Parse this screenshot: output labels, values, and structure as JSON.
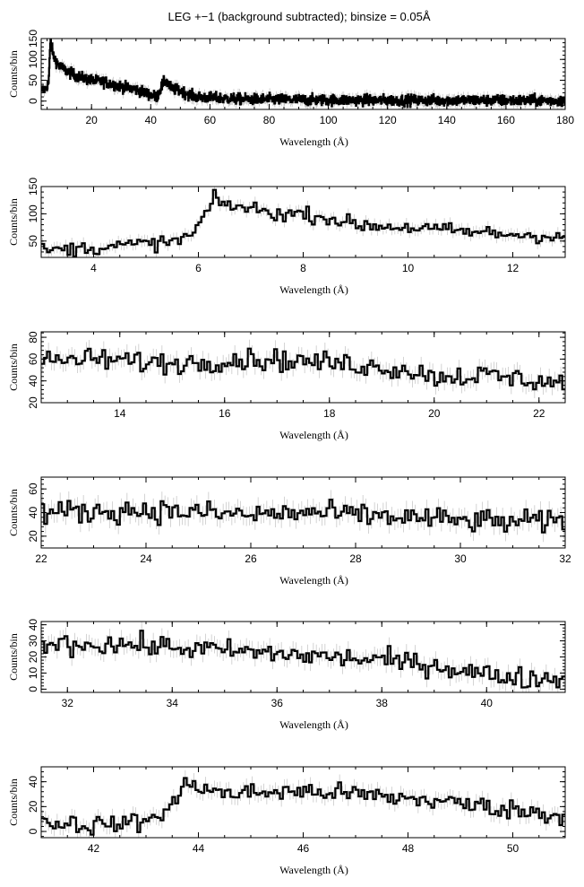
{
  "figure": {
    "title": "LEG +−1 (background subtracted); binsize = 0.05Å"
  },
  "chart_data": [
    {
      "type": "line",
      "style": "step-histogram-with-errorbars",
      "xlabel": "Wavelength (Å)",
      "ylabel": "Counts/bin",
      "xlim": [
        3,
        180
      ],
      "ylim": [
        -20,
        150
      ],
      "xticks": [
        20,
        40,
        60,
        80,
        100,
        120,
        140,
        160,
        180
      ],
      "yticks": [
        0,
        50,
        100,
        150
      ],
      "profile": [
        [
          3,
          25
        ],
        [
          4.5,
          30
        ],
        [
          5.5,
          45
        ],
        [
          6.2,
          150
        ],
        [
          7,
          110
        ],
        [
          9,
          85
        ],
        [
          12,
          70
        ],
        [
          15,
          60
        ],
        [
          20,
          50
        ],
        [
          25,
          45
        ],
        [
          30,
          35
        ],
        [
          35,
          28
        ],
        [
          40,
          15
        ],
        [
          42,
          10
        ],
        [
          44,
          40
        ],
        [
          45,
          50
        ],
        [
          47,
          30
        ],
        [
          50,
          25
        ],
        [
          55,
          10
        ],
        [
          60,
          8
        ],
        [
          70,
          5
        ],
        [
          90,
          3
        ],
        [
          120,
          2
        ],
        [
          150,
          2
        ],
        [
          180,
          1
        ]
      ],
      "noise": 12
    },
    {
      "type": "line",
      "style": "step-histogram-with-errorbars",
      "xlabel": "Wavelength (Å)",
      "ylabel": "Counts/bin",
      "xlim": [
        3,
        13
      ],
      "ylim": [
        20,
        150
      ],
      "xticks": [
        4,
        6,
        8,
        10,
        12
      ],
      "yticks": [
        50,
        100,
        150
      ],
      "profile": [
        [
          3,
          32
        ],
        [
          4,
          38
        ],
        [
          5,
          45
        ],
        [
          5.5,
          48
        ],
        [
          5.9,
          62
        ],
        [
          6.1,
          95
        ],
        [
          6.3,
          125
        ],
        [
          6.6,
          115
        ],
        [
          7,
          110
        ],
        [
          7.5,
          100
        ],
        [
          8,
          100
        ],
        [
          8.5,
          92
        ],
        [
          9,
          80
        ],
        [
          10,
          75
        ],
        [
          11,
          68
        ],
        [
          12,
          62
        ],
        [
          13,
          58
        ]
      ],
      "noise": 12
    },
    {
      "type": "line",
      "style": "step-histogram-with-errorbars",
      "xlabel": "Wavelength (Å)",
      "ylabel": "Counts/bin",
      "xlim": [
        12.5,
        22.5
      ],
      "ylim": [
        20,
        85
      ],
      "xticks": [
        14,
        16,
        18,
        20,
        22
      ],
      "yticks": [
        20,
        40,
        60,
        80
      ],
      "profile": [
        [
          12.5,
          58
        ],
        [
          13.5,
          60
        ],
        [
          15,
          56
        ],
        [
          16.5,
          60
        ],
        [
          17.5,
          58
        ],
        [
          18.5,
          55
        ],
        [
          19.5,
          50
        ],
        [
          20,
          44
        ],
        [
          21,
          45
        ],
        [
          22,
          40
        ],
        [
          22.5,
          38
        ]
      ],
      "noise": 9
    },
    {
      "type": "line",
      "style": "step-histogram-with-errorbars",
      "xlabel": "Wavelength (Å)",
      "ylabel": "Counts/bin",
      "xlim": [
        22,
        32
      ],
      "ylim": [
        10,
        70
      ],
      "xticks": [
        22,
        24,
        26,
        28,
        30,
        32
      ],
      "yticks": [
        20,
        40,
        60
      ],
      "profile": [
        [
          22,
          40
        ],
        [
          24,
          42
        ],
        [
          25,
          40
        ],
        [
          26,
          38
        ],
        [
          27,
          40
        ],
        [
          28,
          38
        ],
        [
          29,
          36
        ],
        [
          30,
          33
        ],
        [
          31,
          32
        ],
        [
          32,
          32
        ]
      ],
      "noise": 9
    },
    {
      "type": "line",
      "style": "step-histogram-with-errorbars",
      "xlabel": "Wavelength (Å)",
      "ylabel": "Counts/bin",
      "xlim": [
        31.5,
        41.5
      ],
      "ylim": [
        -2,
        42
      ],
      "xticks": [
        32,
        34,
        36,
        38,
        40
      ],
      "yticks": [
        0,
        10,
        20,
        30,
        40
      ],
      "profile": [
        [
          31.5,
          28
        ],
        [
          33,
          28
        ],
        [
          34,
          26
        ],
        [
          35,
          24
        ],
        [
          36,
          22
        ],
        [
          37,
          20
        ],
        [
          38,
          18
        ],
        [
          39,
          15
        ],
        [
          40,
          9
        ],
        [
          41,
          6
        ],
        [
          41.5,
          8
        ]
      ],
      "noise": 6
    },
    {
      "type": "line",
      "style": "step-histogram-with-errorbars",
      "xlabel": "Wavelength (Å)",
      "ylabel": "Counts/bin",
      "xlim": [
        41,
        51
      ],
      "ylim": [
        -5,
        52
      ],
      "xticks": [
        42,
        44,
        46,
        48,
        50
      ],
      "yticks": [
        0,
        20,
        40
      ],
      "profile": [
        [
          41,
          8
        ],
        [
          42,
          5
        ],
        [
          43,
          8
        ],
        [
          43.5,
          20
        ],
        [
          43.8,
          40
        ],
        [
          44.5,
          30
        ],
        [
          45.5,
          32
        ],
        [
          46.5,
          32
        ],
        [
          47.5,
          28
        ],
        [
          48.5,
          25
        ],
        [
          49.5,
          20
        ],
        [
          50.5,
          15
        ],
        [
          51,
          12
        ]
      ],
      "noise": 7
    }
  ]
}
